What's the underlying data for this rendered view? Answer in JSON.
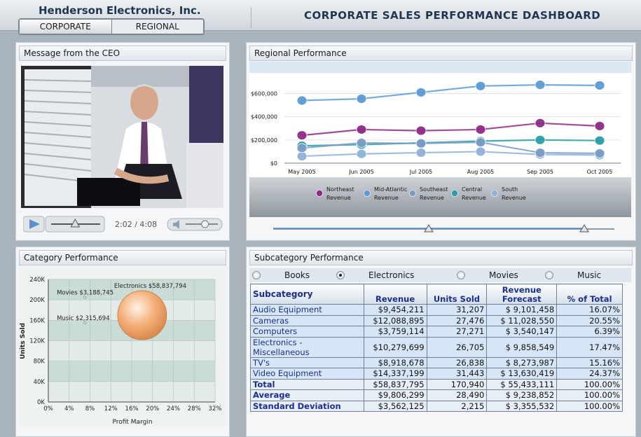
{
  "header": {
    "company": "Henderson Electronics, Inc.",
    "title": "CORPORATE SALES PERFORMANCE DASHBOARD",
    "tabs": [
      "CORPORATE",
      "REGIONAL"
    ]
  },
  "ceo_panel": {
    "title": "Message from the CEO",
    "time": "2:02 / 4:08",
    "progress": 0.49,
    "volume": 0.6
  },
  "category_panel": {
    "title": "Category Performance",
    "chart_data": {
      "type": "scatter",
      "xlabel": "Profit Margin",
      "ylabel": "Units Sold",
      "xticks": [
        "0%",
        "4%",
        "8%",
        "12%",
        "16%",
        "20%",
        "24%",
        "28%",
        "32%"
      ],
      "yticks": [
        "0K",
        "40K",
        "80K",
        "120K",
        "160K",
        "200K",
        "240K"
      ],
      "xlim": [
        0,
        32
      ],
      "ylim": [
        0,
        240000
      ],
      "points": [
        {
          "label": "Electronics $58,837,794",
          "x": 18,
          "y": 170000,
          "bubble": "large"
        },
        {
          "label": "Movies $3,188,745",
          "x": 7,
          "y": 205000,
          "bubble": "small"
        },
        {
          "label": "Music $2,315,694",
          "x": 7,
          "y": 155000,
          "bubble": "small"
        }
      ]
    }
  },
  "regional_panel": {
    "title": "Regional Performance",
    "chart_data": {
      "type": "line",
      "categories": [
        "May 2005",
        "Jun 2005",
        "Jul 2005",
        "Aug 2005",
        "Sep 2005",
        "Oct 2005"
      ],
      "yticks": [
        "$0",
        "$200,000",
        "$400,000",
        "$600,000"
      ],
      "ylim": [
        0,
        700000
      ],
      "series": [
        {
          "name": "Northeast Revenue",
          "color": "#8e2b86",
          "values": [
            240000,
            290000,
            280000,
            290000,
            345000,
            320000
          ]
        },
        {
          "name": "Mid-Atlantic Revenue",
          "color": "#5b9bd5",
          "values": [
            540000,
            555000,
            610000,
            665000,
            675000,
            670000
          ]
        },
        {
          "name": "Southeast Revenue",
          "color": "#7a9cc6",
          "values": [
            130000,
            175000,
            170000,
            180000,
            90000,
            85000
          ]
        },
        {
          "name": "Central Revenue",
          "color": "#2a9ea8",
          "values": [
            150000,
            160000,
            175000,
            190000,
            200000,
            195000
          ]
        },
        {
          "name": "South Revenue",
          "color": "#8fb2d8",
          "values": [
            60000,
            80000,
            90000,
            100000,
            75000,
            70000
          ]
        }
      ]
    }
  },
  "subcategory_panel": {
    "title": "Subcategory Performance",
    "options": [
      {
        "label": "Books",
        "selected": false
      },
      {
        "label": "Electronics",
        "selected": true
      },
      {
        "label": "Movies",
        "selected": false
      },
      {
        "label": "Music",
        "selected": false
      }
    ],
    "columns": [
      "Subcategory",
      "Revenue",
      "Units Sold",
      "Revenue Forecast",
      "% of Total"
    ],
    "rows": [
      [
        "Audio Equipment",
        "$9,454,211",
        "31,207",
        "$ 9,101,458",
        "16.07%"
      ],
      [
        "Cameras",
        "$12,088,895",
        "27,476",
        "$ 11,028,550",
        "20.55%"
      ],
      [
        "Computers",
        "$3,759,114",
        "27,271",
        "$ 3,540,147",
        "6.39%"
      ],
      [
        "Electronics - Miscellaneous",
        "$10,279,699",
        "26,705",
        "$ 9,858,549",
        "17.47%"
      ],
      [
        "TV's",
        "$8,918,678",
        "26,838",
        "$ 8,273,987",
        "15.16%"
      ],
      [
        "Video Equipment",
        "$14,337,199",
        "31,443",
        "$ 13,630,419",
        "24.37%"
      ]
    ],
    "summary": [
      [
        "Total",
        "$58,837,795",
        "170,940",
        "$ 55,433,111",
        "100.00%"
      ],
      [
        "Average",
        "$9,806,299",
        "28,490",
        "$ 9,238,852",
        "100.00%"
      ],
      [
        "Standard Deviation",
        "$3,562,125",
        "2,215",
        "$ 3,355,532",
        "100.00%"
      ]
    ]
  }
}
